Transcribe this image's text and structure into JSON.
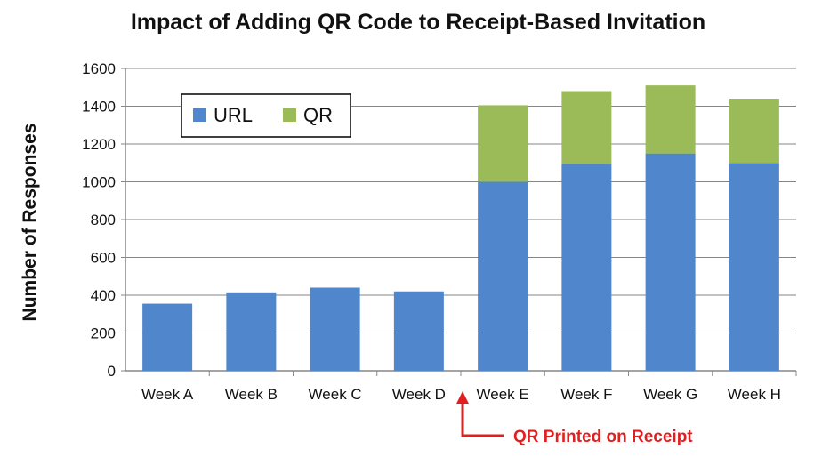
{
  "chart_data": {
    "type": "bar",
    "stacked": true,
    "title": "Impact of Adding QR Code to Receipt-Based Invitation",
    "xlabel": "",
    "ylabel": "Number of Responses",
    "categories": [
      "Week A",
      "Week B",
      "Week C",
      "Week D",
      "Week E",
      "Week F",
      "Week G",
      "Week H"
    ],
    "series": [
      {
        "name": "URL",
        "color": "#4f86cc",
        "values": [
          355,
          415,
          440,
          420,
          1000,
          1095,
          1150,
          1100
        ]
      },
      {
        "name": "QR",
        "color": "#9bbb59",
        "values": [
          0,
          0,
          0,
          0,
          405,
          385,
          360,
          340
        ]
      }
    ],
    "ylim": [
      0,
      1600
    ],
    "yticks": [
      0,
      200,
      400,
      600,
      800,
      1000,
      1200,
      1400,
      1600
    ],
    "grid": true,
    "legend_position": "top-left",
    "annotation": {
      "text": "QR Printed on Receipt",
      "color": "#e02020",
      "points_to": "between Week D and Week E"
    }
  }
}
